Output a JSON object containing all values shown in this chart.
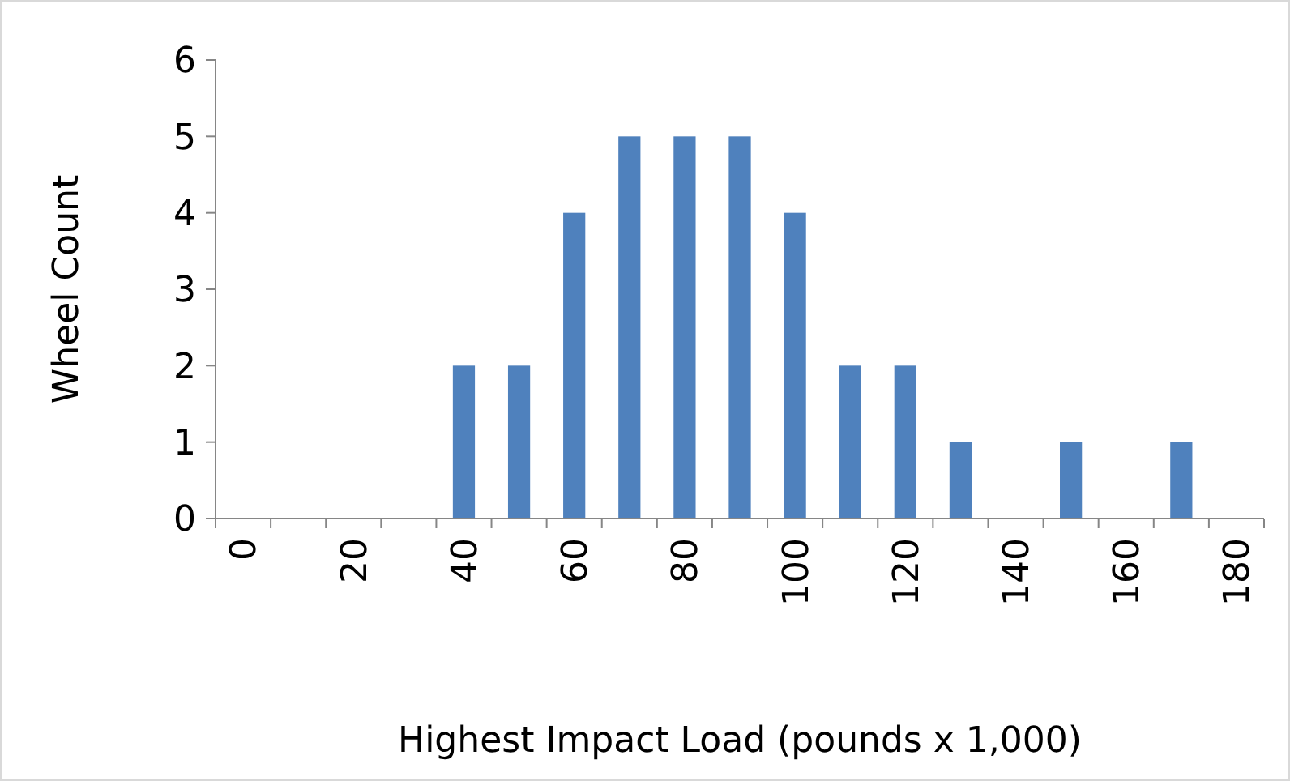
{
  "chart_data": {
    "type": "bar",
    "xlabel": "Highest Impact Load (pounds x 1,000)",
    "ylabel": "Wheel Count",
    "categories": [
      "0",
      null,
      "20",
      null,
      "40",
      null,
      "60",
      null,
      "80",
      null,
      "100",
      null,
      "120",
      null,
      "140",
      null,
      "160",
      null,
      "180"
    ],
    "values": [
      0,
      0,
      0,
      0,
      2,
      2,
      4,
      5,
      5,
      5,
      4,
      2,
      2,
      1,
      0,
      1,
      0,
      1,
      0
    ],
    "color": "#4f81bd",
    "ylim": [
      0,
      6
    ],
    "yticks": [
      0,
      1,
      2,
      3,
      4,
      5,
      6
    ],
    "grid": false
  }
}
